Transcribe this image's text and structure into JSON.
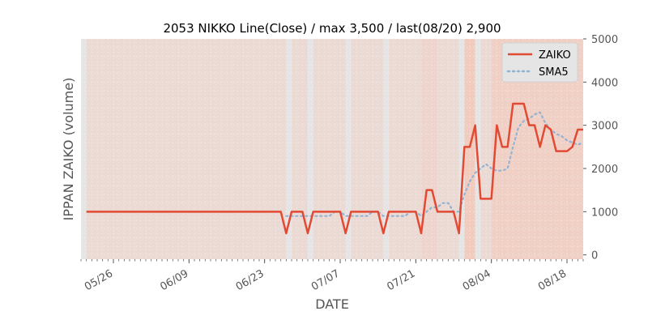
{
  "chart_data": {
    "type": "line",
    "title": "2053 NIKKO Line(Close) / max 3,500 / last(08/20) 2,900",
    "xlabel": "DATE",
    "ylabel": "IPPAN ZAIKO (volume)",
    "ylim": [
      -100,
      5000
    ],
    "yticks": [
      0,
      1000,
      2000,
      3000,
      4000,
      5000
    ],
    "xticks": [
      "05/26",
      "06/09",
      "06/23",
      "07/07",
      "07/21",
      "08/04",
      "08/18"
    ],
    "x_start": "05/20",
    "x_end": "08/21",
    "grid": true,
    "legend_position": "top-right",
    "colors": {
      "zaiko": "#e24a33",
      "sma5": "#92b4d4",
      "background": "#e5e5e5",
      "band": "#f2c9bd"
    },
    "series": [
      {
        "name": "ZAIKO",
        "style": "solid",
        "points": [
          [
            "05/21",
            1000
          ],
          [
            "05/22",
            1000
          ],
          [
            "05/23",
            1000
          ],
          [
            "05/24",
            1000
          ],
          [
            "05/25",
            1000
          ],
          [
            "05/26",
            1000
          ],
          [
            "05/27",
            1000
          ],
          [
            "05/28",
            1000
          ],
          [
            "05/29",
            1000
          ],
          [
            "05/30",
            1000
          ],
          [
            "05/31",
            1000
          ],
          [
            "06/01",
            1000
          ],
          [
            "06/02",
            1000
          ],
          [
            "06/03",
            1000
          ],
          [
            "06/04",
            1000
          ],
          [
            "06/05",
            1000
          ],
          [
            "06/06",
            1000
          ],
          [
            "06/07",
            1000
          ],
          [
            "06/08",
            1000
          ],
          [
            "06/09",
            1000
          ],
          [
            "06/10",
            1000
          ],
          [
            "06/11",
            1000
          ],
          [
            "06/12",
            1000
          ],
          [
            "06/13",
            1000
          ],
          [
            "06/14",
            1000
          ],
          [
            "06/15",
            1000
          ],
          [
            "06/16",
            1000
          ],
          [
            "06/17",
            1000
          ],
          [
            "06/18",
            1000
          ],
          [
            "06/19",
            1000
          ],
          [
            "06/20",
            1000
          ],
          [
            "06/21",
            1000
          ],
          [
            "06/22",
            1000
          ],
          [
            "06/23",
            1000
          ],
          [
            "06/24",
            1000
          ],
          [
            "06/25",
            1000
          ],
          [
            "06/26",
            1000
          ],
          [
            "06/27",
            500
          ],
          [
            "06/28",
            1000
          ],
          [
            "06/29",
            1000
          ],
          [
            "06/30",
            1000
          ],
          [
            "07/01",
            500
          ],
          [
            "07/02",
            1000
          ],
          [
            "07/03",
            1000
          ],
          [
            "07/04",
            1000
          ],
          [
            "07/05",
            1000
          ],
          [
            "07/06",
            1000
          ],
          [
            "07/07",
            1000
          ],
          [
            "07/08",
            500
          ],
          [
            "07/09",
            1000
          ],
          [
            "07/10",
            1000
          ],
          [
            "07/11",
            1000
          ],
          [
            "07/12",
            1000
          ],
          [
            "07/13",
            1000
          ],
          [
            "07/14",
            1000
          ],
          [
            "07/15",
            500
          ],
          [
            "07/16",
            1000
          ],
          [
            "07/17",
            1000
          ],
          [
            "07/18",
            1000
          ],
          [
            "07/19",
            1000
          ],
          [
            "07/20",
            1000
          ],
          [
            "07/21",
            1000
          ],
          [
            "07/22",
            500
          ],
          [
            "07/23",
            1500
          ],
          [
            "07/24",
            1500
          ],
          [
            "07/25",
            1000
          ],
          [
            "07/26",
            1000
          ],
          [
            "07/27",
            1000
          ],
          [
            "07/28",
            1000
          ],
          [
            "07/29",
            500
          ],
          [
            "07/30",
            2500
          ],
          [
            "07/31",
            2500
          ],
          [
            "08/01",
            3000
          ],
          [
            "08/02",
            1300
          ],
          [
            "08/03",
            1300
          ],
          [
            "08/04",
            1300
          ],
          [
            "08/05",
            3000
          ],
          [
            "08/06",
            2500
          ],
          [
            "08/07",
            2500
          ],
          [
            "08/08",
            3500
          ],
          [
            "08/09",
            3500
          ],
          [
            "08/10",
            3500
          ],
          [
            "08/11",
            3000
          ],
          [
            "08/12",
            3000
          ],
          [
            "08/13",
            2500
          ],
          [
            "08/14",
            3000
          ],
          [
            "08/15",
            2900
          ],
          [
            "08/16",
            2400
          ],
          [
            "08/17",
            2400
          ],
          [
            "08/18",
            2400
          ],
          [
            "08/19",
            2500
          ],
          [
            "08/20",
            2900
          ],
          [
            "08/21",
            2900
          ]
        ]
      },
      {
        "name": "SMA5",
        "style": "dotted",
        "points": [
          [
            "06/27",
            900
          ],
          [
            "06/28",
            900
          ],
          [
            "06/29",
            900
          ],
          [
            "06/30",
            900
          ],
          [
            "07/01",
            900
          ],
          [
            "07/02",
            900
          ],
          [
            "07/03",
            900
          ],
          [
            "07/04",
            900
          ],
          [
            "07/05",
            900
          ],
          [
            "07/06",
            1000
          ],
          [
            "07/07",
            1000
          ],
          [
            "07/08",
            900
          ],
          [
            "07/09",
            900
          ],
          [
            "07/10",
            900
          ],
          [
            "07/11",
            900
          ],
          [
            "07/12",
            900
          ],
          [
            "07/13",
            1000
          ],
          [
            "07/14",
            1000
          ],
          [
            "07/15",
            900
          ],
          [
            "07/16",
            900
          ],
          [
            "07/17",
            900
          ],
          [
            "07/18",
            900
          ],
          [
            "07/19",
            900
          ],
          [
            "07/20",
            1000
          ],
          [
            "07/21",
            1000
          ],
          [
            "07/22",
            900
          ],
          [
            "07/23",
            1000
          ],
          [
            "07/24",
            1100
          ],
          [
            "07/25",
            1100
          ],
          [
            "07/26",
            1200
          ],
          [
            "07/27",
            1200
          ],
          [
            "07/28",
            1000
          ],
          [
            "07/29",
            1000
          ],
          [
            "07/30",
            1400
          ],
          [
            "07/31",
            1700
          ],
          [
            "08/01",
            1900
          ],
          [
            "08/02",
            2000
          ],
          [
            "08/03",
            2100
          ],
          [
            "08/04",
            2000
          ],
          [
            "08/05",
            1950
          ],
          [
            "08/06",
            1950
          ],
          [
            "08/07",
            2000
          ],
          [
            "08/08",
            2500
          ],
          [
            "08/09",
            2950
          ],
          [
            "08/10",
            3100
          ],
          [
            "08/11",
            3150
          ],
          [
            "08/12",
            3250
          ],
          [
            "08/13",
            3300
          ],
          [
            "08/14",
            3050
          ],
          [
            "08/15",
            2900
          ],
          [
            "08/16",
            2800
          ],
          [
            "08/17",
            2750
          ],
          [
            "08/18",
            2650
          ],
          [
            "08/19",
            2600
          ],
          [
            "08/20",
            2550
          ],
          [
            "08/21",
            2600
          ]
        ]
      }
    ],
    "bands": [
      {
        "from": "05/21",
        "to": "06/27",
        "alpha": 0.42
      },
      {
        "from": "06/28",
        "to": "07/01",
        "alpha": 0.42
      },
      {
        "from": "07/02",
        "to": "07/08",
        "alpha": 0.42
      },
      {
        "from": "07/09",
        "to": "07/15",
        "alpha": 0.42
      },
      {
        "from": "07/16",
        "to": "07/22",
        "alpha": 0.42
      },
      {
        "from": "07/22",
        "to": "07/25",
        "alpha": 0.62
      },
      {
        "from": "07/25",
        "to": "07/29",
        "alpha": 0.42
      },
      {
        "from": "07/30",
        "to": "08/01",
        "alpha": 0.95
      },
      {
        "from": "08/02",
        "to": "08/04",
        "alpha": 0.42
      },
      {
        "from": "08/04",
        "to": "08/21",
        "alpha": 0.8
      }
    ]
  }
}
